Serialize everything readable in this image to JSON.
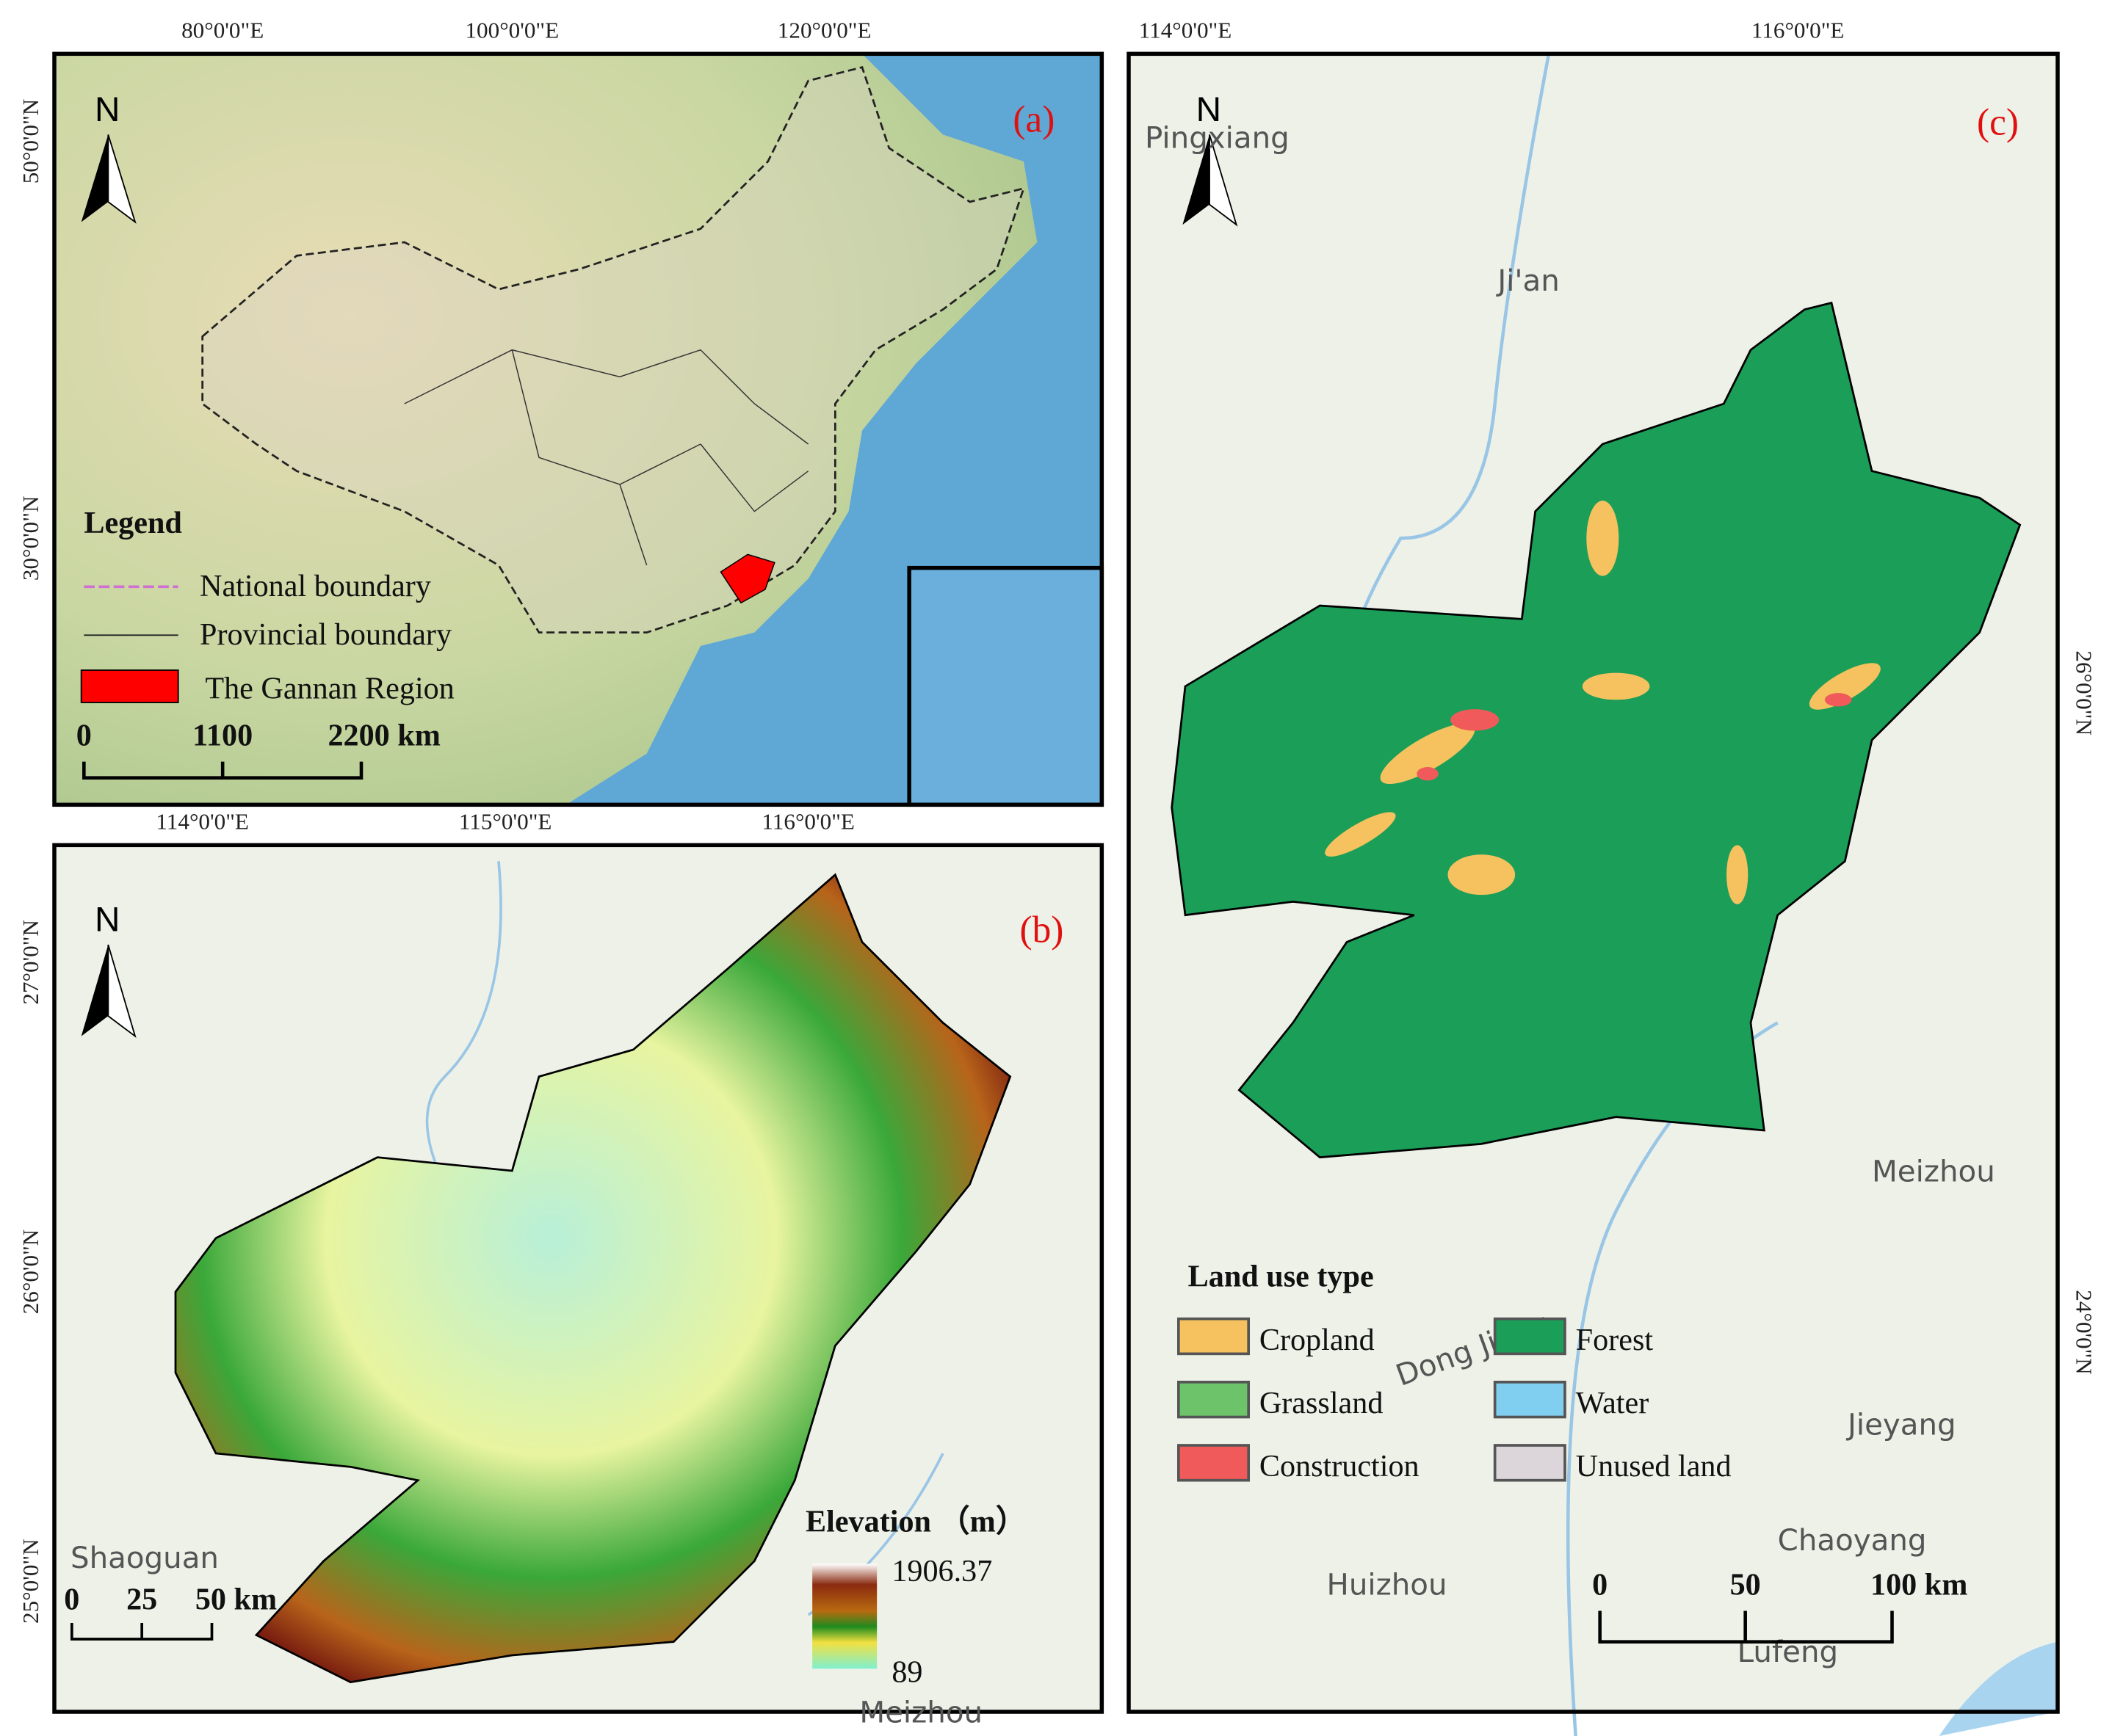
{
  "panel_a": {
    "label": "(a)",
    "lon_labels": [
      "80°0'0\"E",
      "100°0'0\"E",
      "120°0'0\"E"
    ],
    "lat_labels": [
      "50°0'0\"N",
      "30°0'0\"N"
    ],
    "north": "N",
    "legend": {
      "title": "Legend",
      "items": [
        "National boundary",
        "Provincial boundary",
        "The Gannan Region"
      ]
    },
    "scale": [
      "0",
      "1100",
      "2200 km"
    ]
  },
  "panel_b": {
    "label": "(b)",
    "lon_labels": [
      "114°0'0\"E",
      "115°0'0\"E",
      "116°0'0\"E"
    ],
    "lat_labels": [
      "27°0'0\"N",
      "26°0'0\"N",
      "25°0'0\"N"
    ],
    "north": "N",
    "places": [
      "Shaoguan",
      "Meizhou"
    ],
    "scale": [
      "0",
      "25",
      "50 km"
    ],
    "elevation": {
      "title": "Elevation （m）",
      "max": "1906.37",
      "min": "89"
    }
  },
  "panel_c": {
    "label": "(c)",
    "lon_labels": [
      "114°0'0\"E",
      "116°0'0\"E"
    ],
    "lat_labels": [
      "26°0'0\"N",
      "24°0'0\"N"
    ],
    "north": "N",
    "places": [
      "Pingxiang",
      "Ji'an",
      "Meizhou",
      "Jieyang",
      "Chaoyang",
      "Huizhou",
      "Lufeng",
      "Dong Jiang"
    ],
    "legend": {
      "title": "Land use type",
      "items": [
        {
          "name": "Cropland",
          "color": "#f6c15f"
        },
        {
          "name": "Forest",
          "color": "#1a9e58"
        },
        {
          "name": "Grassland",
          "color": "#6cc36a"
        },
        {
          "name": "Water",
          "color": "#80cff0"
        },
        {
          "name": "Construction",
          "color": "#f05a5a"
        },
        {
          "name": "Unused land",
          "color": "#dcd6da"
        }
      ]
    },
    "scale": [
      "0",
      "50",
      "100 km"
    ]
  }
}
